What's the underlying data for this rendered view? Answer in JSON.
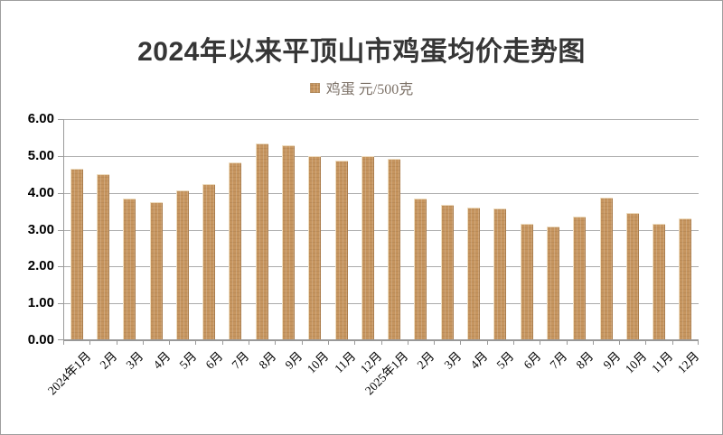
{
  "page": {
    "background": "#ffffff",
    "border_color": "#9e9e9e"
  },
  "header": {
    "title": "2024年以来平顶山市鸡蛋均价走势图"
  },
  "legend": {
    "label": "鸡蛋 元/500克",
    "swatch_color": "#c6955f"
  },
  "chart_data": {
    "type": "bar",
    "title": "2024年以来平顶山市鸡蛋均价走势图",
    "legend_entries": [
      "鸡蛋 元/500克"
    ],
    "legend_position": "top",
    "unit": "元/500克",
    "categories": [
      "2024年1月",
      "2月",
      "3月",
      "4月",
      "5月",
      "6月",
      "7月",
      "8月",
      "9月",
      "10月",
      "11月",
      "12月",
      "2025年1月",
      "2月",
      "3月",
      "4月",
      "5月",
      "6月",
      "7月",
      "8月",
      "9月",
      "10月",
      "11月",
      "12月"
    ],
    "values": [
      4.66,
      4.51,
      3.85,
      3.75,
      4.07,
      4.25,
      4.82,
      5.35,
      5.29,
      5.0,
      4.88,
      4.99,
      4.93,
      3.85,
      3.68,
      3.6,
      3.57,
      3.17,
      3.09,
      3.35,
      3.88,
      3.46,
      3.16,
      3.3
    ],
    "xlabel": "",
    "ylabel": "",
    "ylim": [
      0,
      6
    ],
    "y_ticks": [
      "0.00",
      "1.00",
      "2.00",
      "3.00",
      "4.00",
      "5.00",
      "6.00"
    ],
    "grid": true,
    "x_tick_rotation_deg": 45,
    "bar_color": "#c6955f",
    "bar_edge_color": "#e8d8bd",
    "grid_color": "#ababab",
    "axis_color": "#9a9a9a",
    "tick_label_color": "#000000",
    "title_color": "#363636"
  }
}
